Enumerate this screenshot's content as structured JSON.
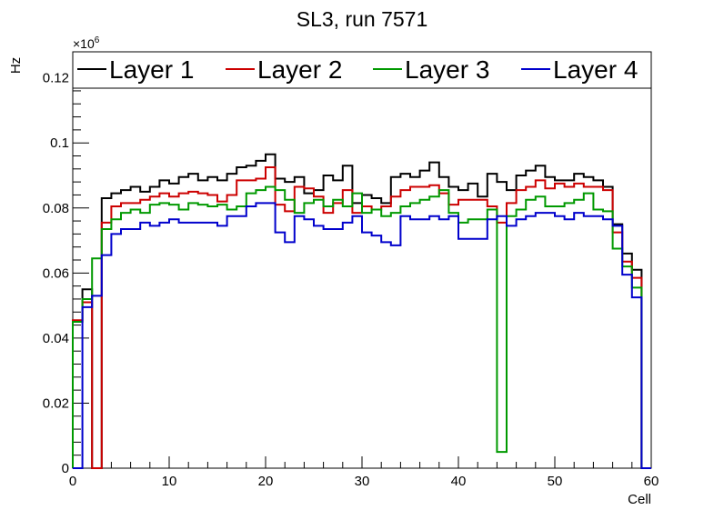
{
  "chart_data": {
    "type": "line",
    "title": "SL3, run 7571",
    "xlabel": "Cell",
    "ylabel": "Hz",
    "y_multiplier_label": "×10",
    "y_multiplier_exponent": "6",
    "xlim": [
      0,
      60
    ],
    "ylim": [
      0,
      0.128
    ],
    "x_ticks": [
      0,
      10,
      20,
      30,
      40,
      50,
      60
    ],
    "x_tick_labels": [
      "0",
      "10",
      "20",
      "30",
      "40",
      "50",
      "60"
    ],
    "y_ticks": [
      0,
      0.02,
      0.04,
      0.06,
      0.08,
      0.1,
      0.12
    ],
    "y_tick_labels": [
      "0",
      "0.02",
      "0.04",
      "0.06",
      "0.08",
      "0.1",
      "0.12"
    ],
    "grid": false,
    "legend_position": "top",
    "series": [
      {
        "name": "Layer 1",
        "color": "#000000",
        "values": [
          0.045,
          0.055,
          0.0,
          0.083,
          0.0845,
          0.0855,
          0.0865,
          0.085,
          0.0865,
          0.0885,
          0.0875,
          0.0895,
          0.0905,
          0.0885,
          0.0895,
          0.0885,
          0.0905,
          0.0925,
          0.093,
          0.0945,
          0.0965,
          0.089,
          0.088,
          0.0895,
          0.0845,
          0.0855,
          0.09,
          0.0885,
          0.093,
          0.0815,
          0.084,
          0.083,
          0.0815,
          0.0895,
          0.0905,
          0.0895,
          0.0915,
          0.094,
          0.0895,
          0.0865,
          0.0855,
          0.0875,
          0.0835,
          0.0905,
          0.088,
          0.0855,
          0.09,
          0.0915,
          0.093,
          0.0895,
          0.0885,
          0.0885,
          0.0905,
          0.0895,
          0.0885,
          0.0865,
          0.075,
          0.066,
          0.061,
          0.0
        ]
      },
      {
        "name": "Layer 2",
        "color": "#cc0000",
        "values": [
          0.0455,
          0.051,
          0.0,
          0.0755,
          0.0805,
          0.0815,
          0.0815,
          0.0825,
          0.0835,
          0.0845,
          0.0835,
          0.0845,
          0.085,
          0.0845,
          0.084,
          0.082,
          0.084,
          0.0885,
          0.0885,
          0.089,
          0.0925,
          0.081,
          0.079,
          0.0865,
          0.086,
          0.0835,
          0.0785,
          0.0815,
          0.0855,
          0.0785,
          0.0805,
          0.0795,
          0.0805,
          0.0835,
          0.0855,
          0.0865,
          0.0865,
          0.087,
          0.0845,
          0.081,
          0.0825,
          0.0825,
          0.0825,
          0.0805,
          0.0755,
          0.0815,
          0.0855,
          0.0865,
          0.0885,
          0.086,
          0.0875,
          0.0865,
          0.0875,
          0.0865,
          0.0865,
          0.0855,
          0.0725,
          0.0635,
          0.0585,
          0.0
        ]
      },
      {
        "name": "Layer 3",
        "color": "#009900",
        "values": [
          0.045,
          0.052,
          0.0645,
          0.0735,
          0.0765,
          0.0785,
          0.0795,
          0.0785,
          0.081,
          0.0815,
          0.081,
          0.0795,
          0.0815,
          0.081,
          0.0805,
          0.081,
          0.0795,
          0.0805,
          0.0845,
          0.0855,
          0.0865,
          0.0855,
          0.0825,
          0.0785,
          0.0815,
          0.0825,
          0.0805,
          0.0825,
          0.0805,
          0.0845,
          0.0785,
          0.0795,
          0.0775,
          0.0785,
          0.0805,
          0.0815,
          0.0825,
          0.0835,
          0.0855,
          0.0785,
          0.0755,
          0.0765,
          0.0765,
          0.0795,
          0.005,
          0.0775,
          0.0795,
          0.0825,
          0.0835,
          0.0805,
          0.0805,
          0.0815,
          0.0825,
          0.0845,
          0.0795,
          0.079,
          0.0675,
          0.062,
          0.0555,
          0.0
        ]
      },
      {
        "name": "Layer 4",
        "color": "#0000cc",
        "values": [
          0.0,
          0.0495,
          0.053,
          0.0655,
          0.072,
          0.0735,
          0.0735,
          0.0755,
          0.0745,
          0.0755,
          0.0765,
          0.0755,
          0.0755,
          0.0755,
          0.0755,
          0.0745,
          0.0775,
          0.0775,
          0.0805,
          0.0815,
          0.0815,
          0.0725,
          0.0695,
          0.0775,
          0.0765,
          0.0745,
          0.0735,
          0.0735,
          0.0755,
          0.0775,
          0.0725,
          0.0715,
          0.0695,
          0.0685,
          0.0775,
          0.0765,
          0.0765,
          0.0775,
          0.0765,
          0.0775,
          0.0705,
          0.0705,
          0.0705,
          0.0765,
          0.0775,
          0.0745,
          0.0765,
          0.0775,
          0.0785,
          0.0785,
          0.0775,
          0.0765,
          0.0785,
          0.0775,
          0.0775,
          0.0765,
          0.0745,
          0.0595,
          0.0525,
          0.0
        ]
      }
    ]
  }
}
